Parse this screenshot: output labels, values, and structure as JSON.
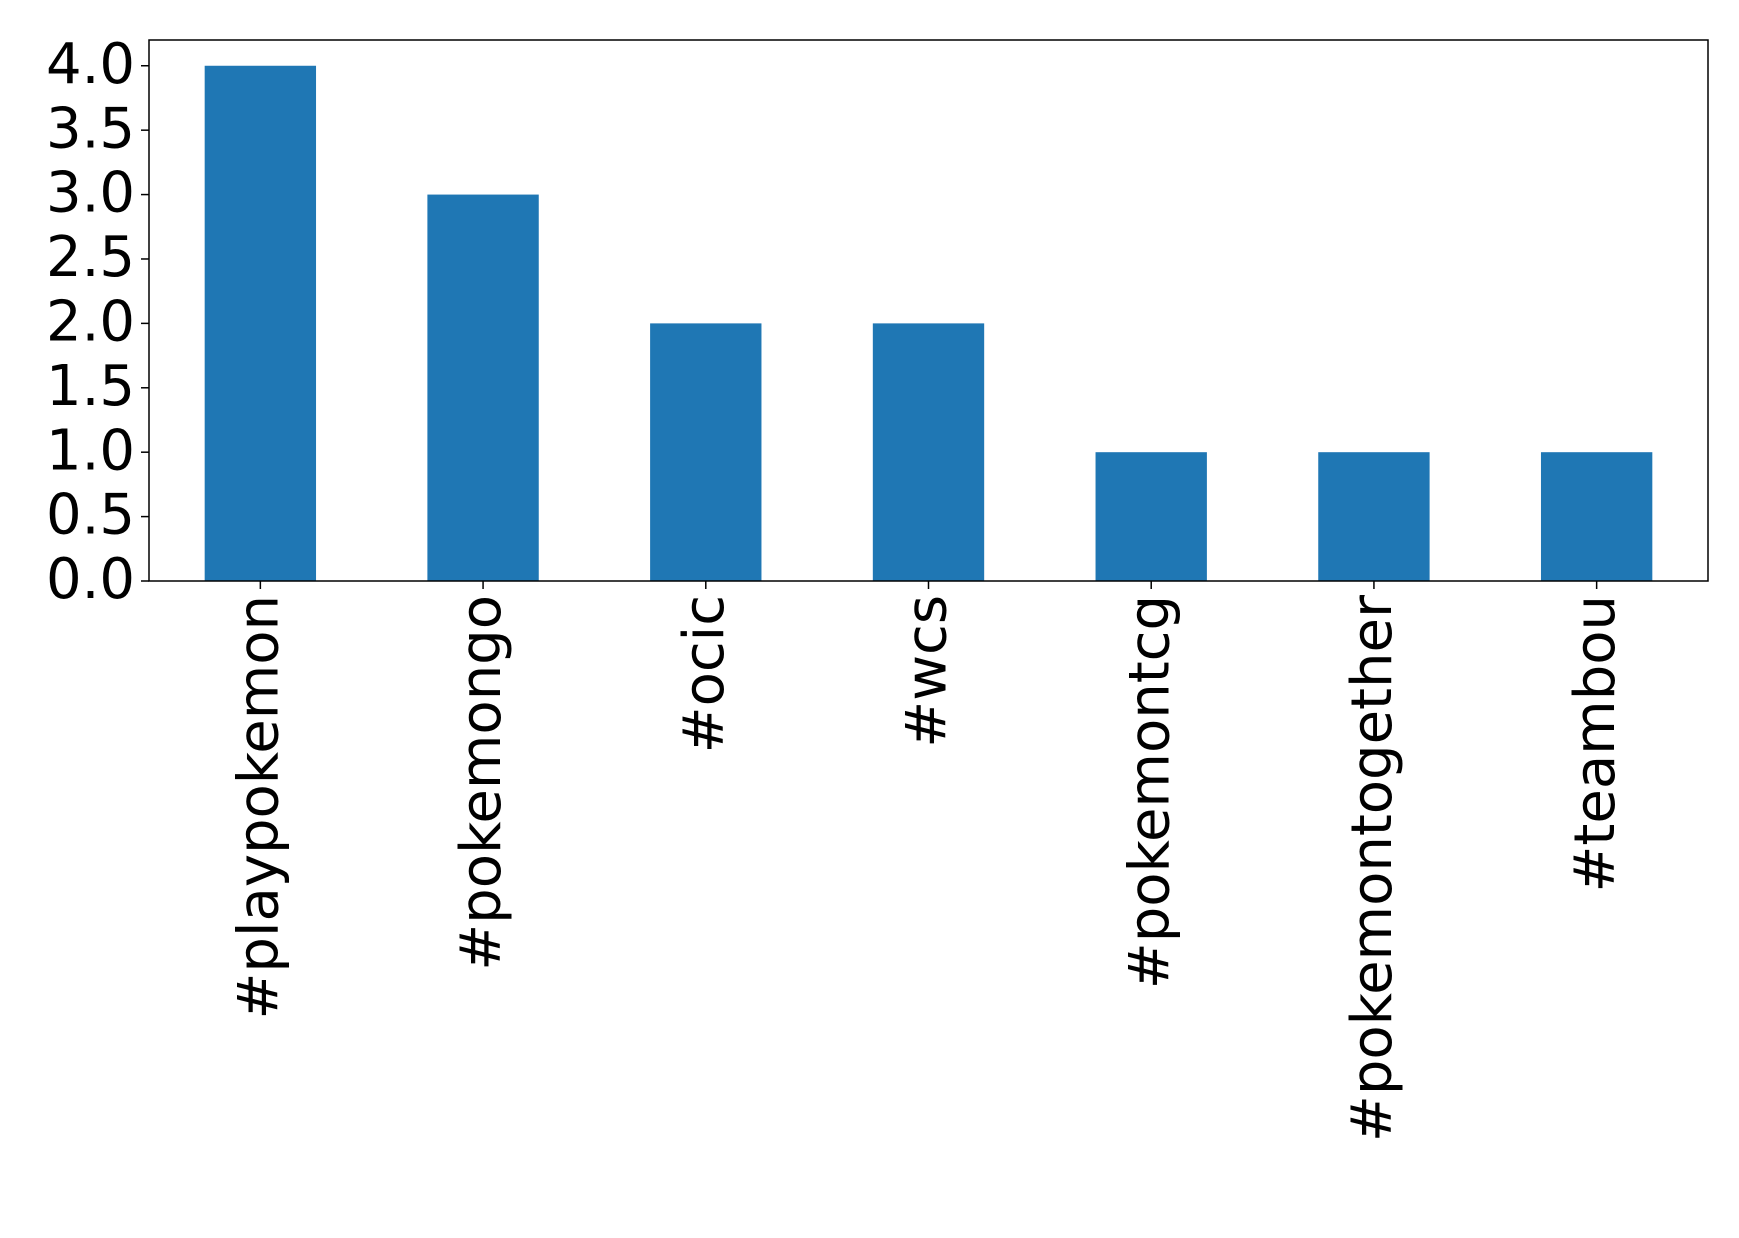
{
  "chart_data": {
    "type": "bar",
    "categories": [
      "#playpokemon",
      "#pokemongo",
      "#ocic",
      "#wcs",
      "#pokemontcg",
      "#pokemontogether",
      "#teambou"
    ],
    "values": [
      4,
      3,
      2,
      2,
      1,
      1,
      1
    ],
    "color": "#1f77b4",
    "ylim": [
      0,
      4.2
    ],
    "yticks": [
      {
        "value": 0,
        "label": "0.0"
      },
      0.5,
      {
        "value": 1,
        "label": "1.0"
      },
      1.5,
      {
        "value": 2,
        "label": "2.0"
      },
      2.5,
      {
        "value": 3,
        "label": "3.0"
      },
      3.5,
      {
        "value": 4,
        "label": "4.0"
      }
    ],
    "grid": false
  }
}
